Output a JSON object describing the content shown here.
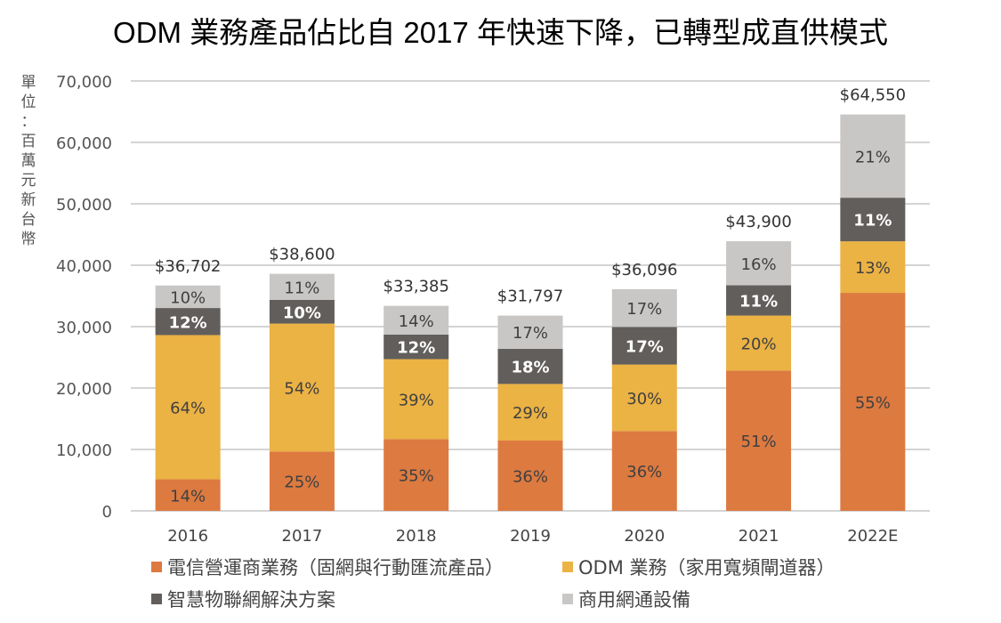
{
  "title": "ODM 業務產品佔比自 2017 年快速下降，已轉型成直供模式",
  "unit_label": [
    "單",
    "位",
    "：",
    "百",
    "萬",
    "元",
    "新",
    "台",
    "幣"
  ],
  "chart_data": {
    "type": "bar",
    "stacked": true,
    "title": "ODM 業務產品佔比自 2017 年快速下降，已轉型成直供模式",
    "xlabel": "",
    "ylabel": "單位：百萬元新台幣",
    "ylim": [
      0,
      70000
    ],
    "yticks": [
      0,
      10000,
      20000,
      30000,
      40000,
      50000,
      60000,
      70000
    ],
    "ytick_labels": [
      "0",
      "10,000",
      "20,000",
      "30,000",
      "40,000",
      "50,000",
      "60,000",
      "70,000"
    ],
    "grid": true,
    "legend_position": "bottom",
    "categories": [
      "2016",
      "2017",
      "2018",
      "2019",
      "2020",
      "2021",
      "2022E"
    ],
    "totals": [
      36702,
      38600,
      33385,
      31797,
      36096,
      43900,
      64550
    ],
    "total_labels": [
      "$36,702",
      "$38,600",
      "$33,385",
      "$31,797",
      "$36,096",
      "$43,900",
      "$64,550"
    ],
    "series": [
      {
        "name": "電信營運商業務（固網與行動匯流產品）",
        "color": "#DD7A40",
        "label_color": "#404040",
        "percent": [
          14,
          25,
          35,
          36,
          36,
          51,
          55
        ]
      },
      {
        "name": "ODM 業務（家用寬頻閘道器）",
        "color": "#EBB244",
        "label_color": "#404040",
        "percent": [
          64,
          54,
          39,
          29,
          30,
          20,
          13
        ]
      },
      {
        "name": "智慧物聯網解決方案",
        "color": "#625E5C",
        "label_color": "#FFFFFF",
        "percent": [
          12,
          10,
          12,
          18,
          17,
          11,
          11
        ]
      },
      {
        "name": "商用網通設備",
        "color": "#C8C7C5",
        "label_color": "#404040",
        "percent": [
          10,
          11,
          14,
          17,
          17,
          16,
          21
        ]
      }
    ]
  }
}
